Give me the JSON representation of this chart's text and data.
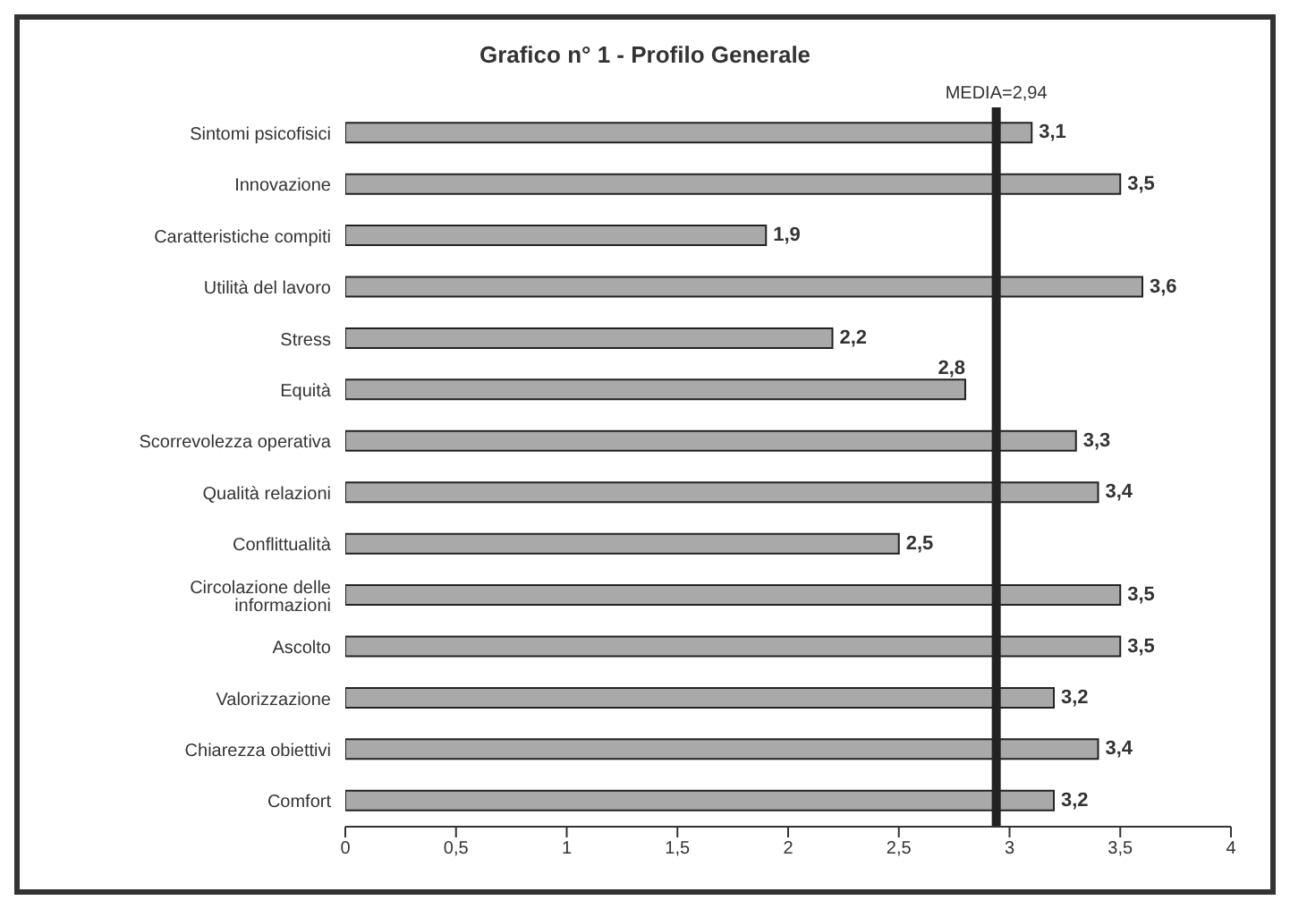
{
  "chart_data": {
    "type": "bar",
    "orientation": "horizontal",
    "title": "Grafico n° 1 - Profilo Generale",
    "categories": [
      "Sintomi psicofisici",
      "Innovazione",
      "Caratteristiche compiti",
      "Utilità del lavoro",
      "Stress",
      "Equità",
      "Scorrevolezza operativa",
      "Qualità relazioni",
      "Conflittualità",
      "Circolazione delle informazioni",
      "Ascolto",
      "Valorizzazione",
      "Chiarezza obiettivi",
      "Comfort"
    ],
    "values": [
      3.1,
      3.5,
      1.9,
      3.6,
      2.2,
      2.8,
      3.3,
      3.4,
      2.5,
      3.5,
      3.5,
      3.2,
      3.4,
      3.2
    ],
    "value_labels": [
      "3,1",
      "3,5",
      "1,9",
      "3,6",
      "2,2",
      "2,8",
      "3,3",
      "3,4",
      "2,5",
      "3,5",
      "3,5",
      "3,2",
      "3,4",
      "3,2"
    ],
    "color": "#a9a9a9",
    "xlim": [
      0,
      4
    ],
    "xticks": [
      0,
      {
        "value": 0.5,
        "label": "0,5"
      },
      1,
      {
        "value": 1.5,
        "label": "1,5"
      },
      2,
      {
        "value": 2.5,
        "label": "2,5"
      },
      3,
      {
        "value": 3.5,
        "label": "3,5"
      },
      4
    ],
    "ref_lines": [
      {
        "axis": "x",
        "value": 2.94,
        "label": "MEDIA=2,94",
        "color": "#222222"
      }
    ],
    "grid": false,
    "legend": false
  }
}
